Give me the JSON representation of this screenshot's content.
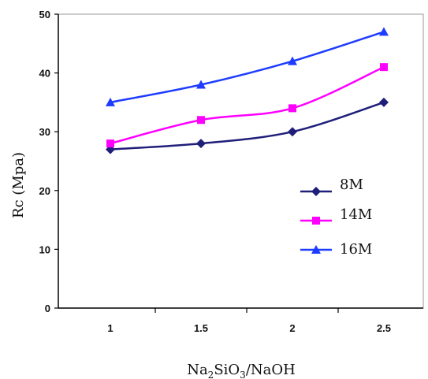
{
  "chart_data": {
    "type": "line",
    "categories": [
      "1",
      "1.5",
      "2",
      "2.5"
    ],
    "x": [
      1,
      1.5,
      2,
      2.5
    ],
    "series": [
      {
        "name": "8M",
        "values": [
          27,
          28,
          30,
          35
        ],
        "color": "#1f1f7a",
        "marker": "diamond"
      },
      {
        "name": "14M",
        "values": [
          28,
          32,
          34,
          41
        ],
        "color": "#ff00ff",
        "marker": "square"
      },
      {
        "name": "16M",
        "values": [
          35,
          38,
          42,
          47
        ],
        "color": "#1e3cff",
        "marker": "triangle"
      }
    ],
    "yticks": [
      "0",
      "10",
      "20",
      "30",
      "40",
      "50"
    ],
    "ylim": [
      0,
      50
    ],
    "xlabel": "Na2SiO3/NaOH",
    "xlabel_parts": {
      "p1": "Na",
      "s1": "2",
      "p2": "SiO",
      "s2": "3",
      "p3": "/NaOH"
    },
    "ylabel": "Rc (Mpa)",
    "grid": false,
    "legend_position": "right-middle"
  }
}
